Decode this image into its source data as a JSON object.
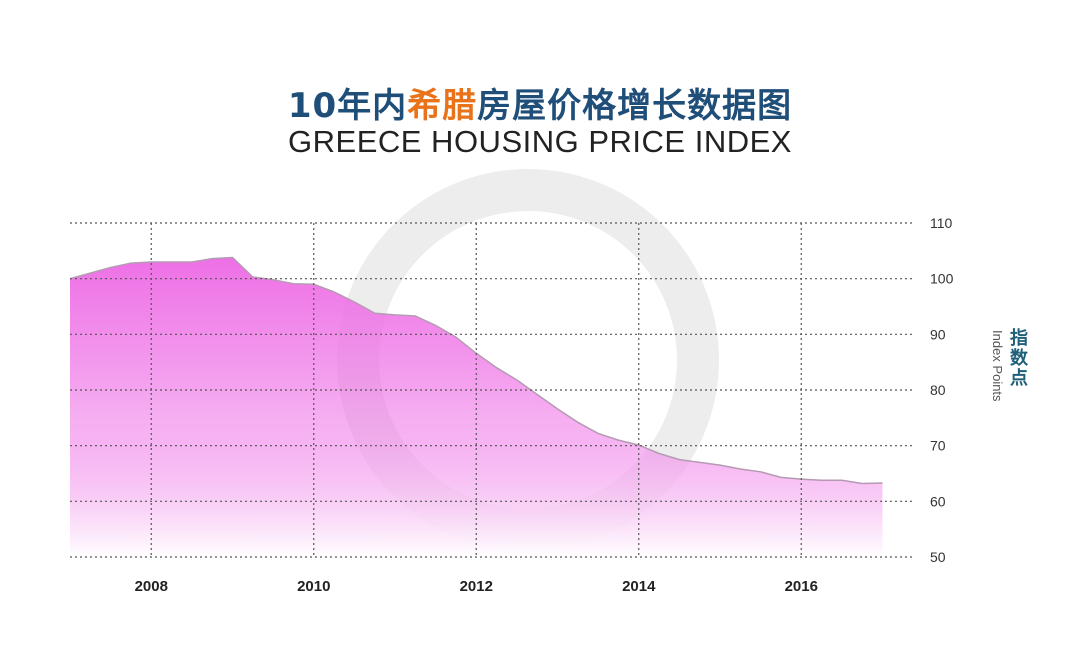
{
  "title_cn": {
    "pre": "10年内",
    "highlight": "希腊",
    "post": "房屋价格增长数据图"
  },
  "title_en": "GREECE HOUSING PRICE INDEX",
  "ylabel_cn": "指数点",
  "ylabel_en": "Index Points",
  "colors": {
    "title": "#1f4e79",
    "highlight": "#e8731a",
    "area_top": "#ee6fe6",
    "area_bottom": "#ffffff",
    "line": "#b59ab3"
  },
  "chart_data": {
    "type": "area",
    "title": "GREECE HOUSING PRICE INDEX",
    "ylabel": "Index Points",
    "xlabel": "",
    "xlim": [
      2007,
      2017.4
    ],
    "ylim": [
      50,
      110
    ],
    "yticks": [
      50,
      60,
      70,
      80,
      90,
      100,
      110
    ],
    "xticks": [
      2008,
      2010,
      2012,
      2014,
      2016
    ],
    "grid": true,
    "y_axis_position": "right",
    "series": [
      {
        "x": [
          2007.0,
          2007.25,
          2007.5,
          2007.75,
          2008.0,
          2008.25,
          2008.5,
          2008.75,
          2009.0,
          2009.25,
          2009.5,
          2009.75,
          2010.0,
          2010.25,
          2010.5,
          2010.75,
          2011.0,
          2011.25,
          2011.5,
          2011.75,
          2012.0,
          2012.25,
          2012.5,
          2012.75,
          2013.0,
          2013.25,
          2013.5,
          2013.75,
          2014.0,
          2014.25,
          2014.5,
          2014.75,
          2015.0,
          2015.25,
          2015.5,
          2015.75,
          2016.0,
          2016.25,
          2016.5,
          2016.75,
          2017.0
        ],
        "values": [
          100.0,
          101.0,
          102.0,
          102.8,
          103.0,
          103.0,
          103.0,
          103.6,
          103.8,
          100.3,
          99.8,
          99.1,
          99.0,
          97.6,
          95.8,
          93.8,
          93.5,
          93.3,
          91.6,
          89.5,
          86.6,
          84.0,
          81.8,
          79.2,
          76.6,
          74.2,
          72.2,
          71.0,
          70.1,
          68.6,
          67.5,
          67.0,
          66.5,
          65.8,
          65.3,
          64.3,
          64.0,
          63.8,
          63.8,
          63.2,
          63.3
        ]
      }
    ]
  }
}
